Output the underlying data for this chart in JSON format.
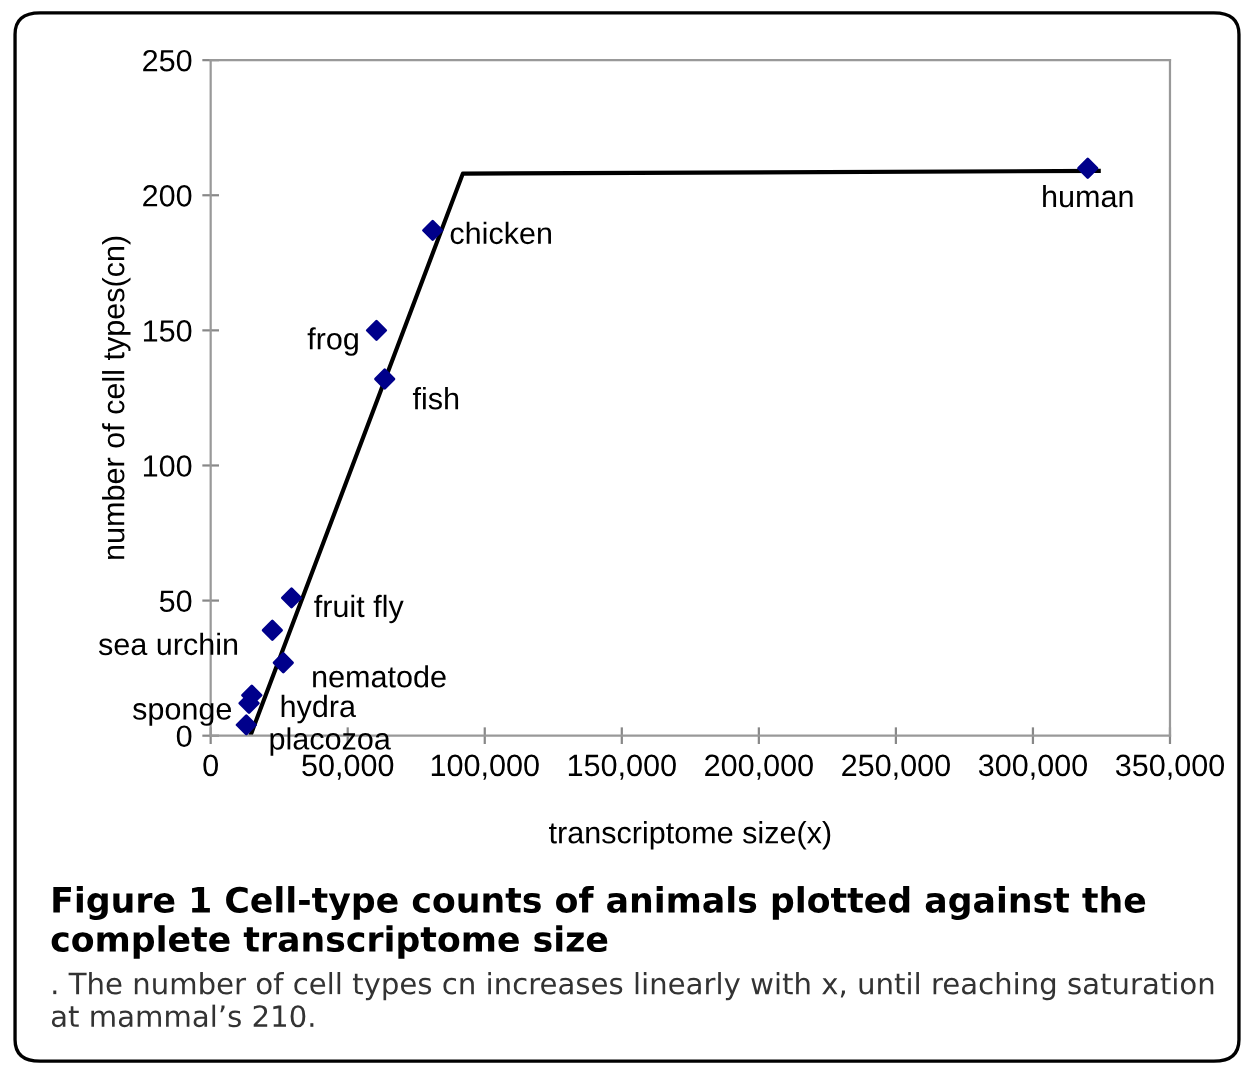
{
  "chart_data": {
    "type": "scatter",
    "title": "Figure 1 Cell-type counts of animals plotted against the complete transcriptome size",
    "xlabel": "transcriptome size(x)",
    "ylabel": "number of cell types(cn)",
    "xlim": [
      0,
      350000
    ],
    "xticks": [
      {
        "value": 0,
        "label": "0"
      },
      {
        "value": 50000,
        "label": "50,000"
      },
      {
        "value": 100000,
        "label": "100,000"
      },
      {
        "value": 150000,
        "label": "150,000"
      },
      {
        "value": 200000,
        "label": "200,000"
      },
      {
        "value": 250000,
        "label": "250,000"
      },
      {
        "value": 300000,
        "label": "300,000"
      },
      {
        "value": 350000,
        "label": "350,000"
      }
    ],
    "ylim": [
      0,
      250
    ],
    "yticks": [
      0,
      50,
      100,
      150,
      200,
      250
    ],
    "grid": false,
    "legend": false,
    "marker": "diamond",
    "series": [
      {
        "color": "#00008b",
        "x": [
          81000,
          60500,
          63500,
          29500,
          22500,
          26500,
          14000,
          15000,
          13000,
          320000
        ],
        "values": [
          187,
          150,
          132,
          51,
          39,
          27,
          12,
          15,
          4,
          210
        ]
      },
      {
        "type": "line",
        "color": "#000000",
        "line_style": "solid",
        "marker": "none",
        "x": [
          14500,
          92000,
          324000
        ],
        "values": [
          0,
          208,
          209
        ]
      }
    ],
    "annotations": [
      {
        "text": "chicken",
        "x": 81000,
        "y": 187
      },
      {
        "text": "frog",
        "x": 60500,
        "y": 150
      },
      {
        "text": "fish",
        "x": 63500,
        "y": 132
      },
      {
        "text": "fruit fly",
        "x": 29500,
        "y": 51
      },
      {
        "text": "sea urchin",
        "x": 22500,
        "y": 39
      },
      {
        "text": "nematode",
        "x": 26500,
        "y": 27
      },
      {
        "text": "sponge",
        "x": 14000,
        "y": 12
      },
      {
        "text": "hydra",
        "x": 15000,
        "y": 15
      },
      {
        "text": "placozoa",
        "x": 13000,
        "y": 4
      },
      {
        "text": "human",
        "x": 320000,
        "y": 210
      },
      ". The number of cell types cn increases linearly with x, until reaching saturation at mammal’s 210."
    ]
  }
}
